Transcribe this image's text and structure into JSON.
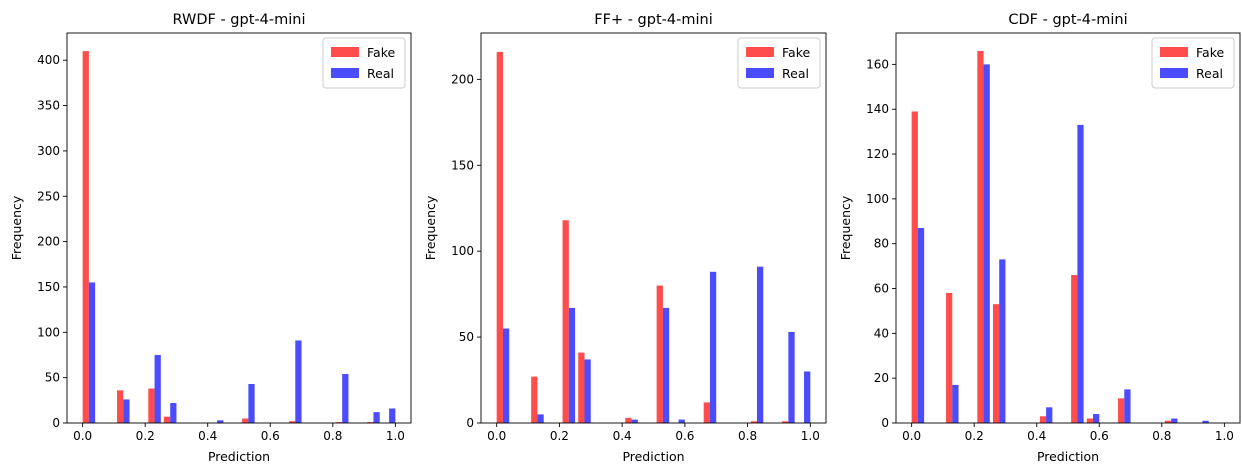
{
  "colors": {
    "fake": "#ff0000",
    "real": "#0000ff",
    "bar_opacity": 0.7
  },
  "chart_data": [
    {
      "type": "bar",
      "title": "RWDF - gpt-4-mini",
      "xlabel": "Prediction",
      "ylabel": "Frequency",
      "xlim": [
        -0.05,
        1.05
      ],
      "ylim": [
        0,
        430
      ],
      "xticks": [
        "0.0",
        "0.2",
        "0.4",
        "0.6",
        "0.8",
        "1.0"
      ],
      "yticks": [
        "0",
        "50",
        "100",
        "150",
        "200",
        "250",
        "300",
        "350",
        "400"
      ],
      "bar_width": 0.02,
      "legend": {
        "location": "top-right",
        "entries": [
          "Fake",
          "Real"
        ]
      },
      "series": [
        {
          "name": "Fake",
          "x": [
            0.01,
            0.12,
            0.22,
            0.27,
            0.52,
            0.67,
            0.82,
            0.92
          ],
          "values": [
            410,
            36,
            38,
            7,
            5,
            2,
            1,
            1
          ]
        },
        {
          "name": "Real",
          "x": [
            0.03,
            0.14,
            0.24,
            0.29,
            0.44,
            0.54,
            0.69,
            0.84,
            0.94,
            0.99
          ],
          "values": [
            155,
            26,
            75,
            22,
            3,
            43,
            91,
            54,
            12,
            16
          ]
        }
      ]
    },
    {
      "type": "bar",
      "title": "FF+ - gpt-4-mini",
      "xlabel": "Prediction",
      "ylabel": "Frequency",
      "xlim": [
        -0.05,
        1.05
      ],
      "ylim": [
        0,
        227
      ],
      "xticks": [
        "0.0",
        "0.2",
        "0.4",
        "0.6",
        "0.8",
        "1.0"
      ],
      "yticks": [
        "0",
        "50",
        "100",
        "150",
        "200"
      ],
      "bar_width": 0.02,
      "legend": {
        "location": "top-right",
        "entries": [
          "Fake",
          "Real"
        ]
      },
      "series": [
        {
          "name": "Fake",
          "x": [
            0.01,
            0.12,
            0.22,
            0.27,
            0.42,
            0.52,
            0.67,
            0.82,
            0.92
          ],
          "values": [
            216,
            27,
            118,
            41,
            3,
            80,
            12,
            1,
            1
          ]
        },
        {
          "name": "Real",
          "x": [
            0.03,
            0.14,
            0.24,
            0.29,
            0.44,
            0.54,
            0.59,
            0.69,
            0.84,
            0.94,
            0.99
          ],
          "values": [
            55,
            5,
            67,
            37,
            2,
            67,
            2,
            88,
            91,
            53,
            30
          ]
        }
      ]
    },
    {
      "type": "bar",
      "title": "CDF - gpt-4-mini",
      "xlabel": "Prediction",
      "ylabel": "Frequency",
      "xlim": [
        -0.05,
        1.05
      ],
      "ylim": [
        0,
        174
      ],
      "xticks": [
        "0.0",
        "0.2",
        "0.4",
        "0.6",
        "0.8",
        "1.0"
      ],
      "yticks": [
        "0",
        "20",
        "40",
        "60",
        "80",
        "100",
        "120",
        "140",
        "160"
      ],
      "bar_width": 0.02,
      "legend": {
        "location": "top-right",
        "entries": [
          "Fake",
          "Real"
        ]
      },
      "series": [
        {
          "name": "Fake",
          "x": [
            0.01,
            0.12,
            0.22,
            0.27,
            0.42,
            0.52,
            0.57,
            0.67,
            0.82
          ],
          "values": [
            139,
            58,
            166,
            53,
            3,
            66,
            2,
            11,
            1
          ]
        },
        {
          "name": "Real",
          "x": [
            0.03,
            0.14,
            0.24,
            0.29,
            0.44,
            0.54,
            0.59,
            0.69,
            0.84,
            0.94
          ],
          "values": [
            87,
            17,
            160,
            73,
            7,
            133,
            4,
            15,
            2,
            1
          ]
        }
      ]
    }
  ]
}
